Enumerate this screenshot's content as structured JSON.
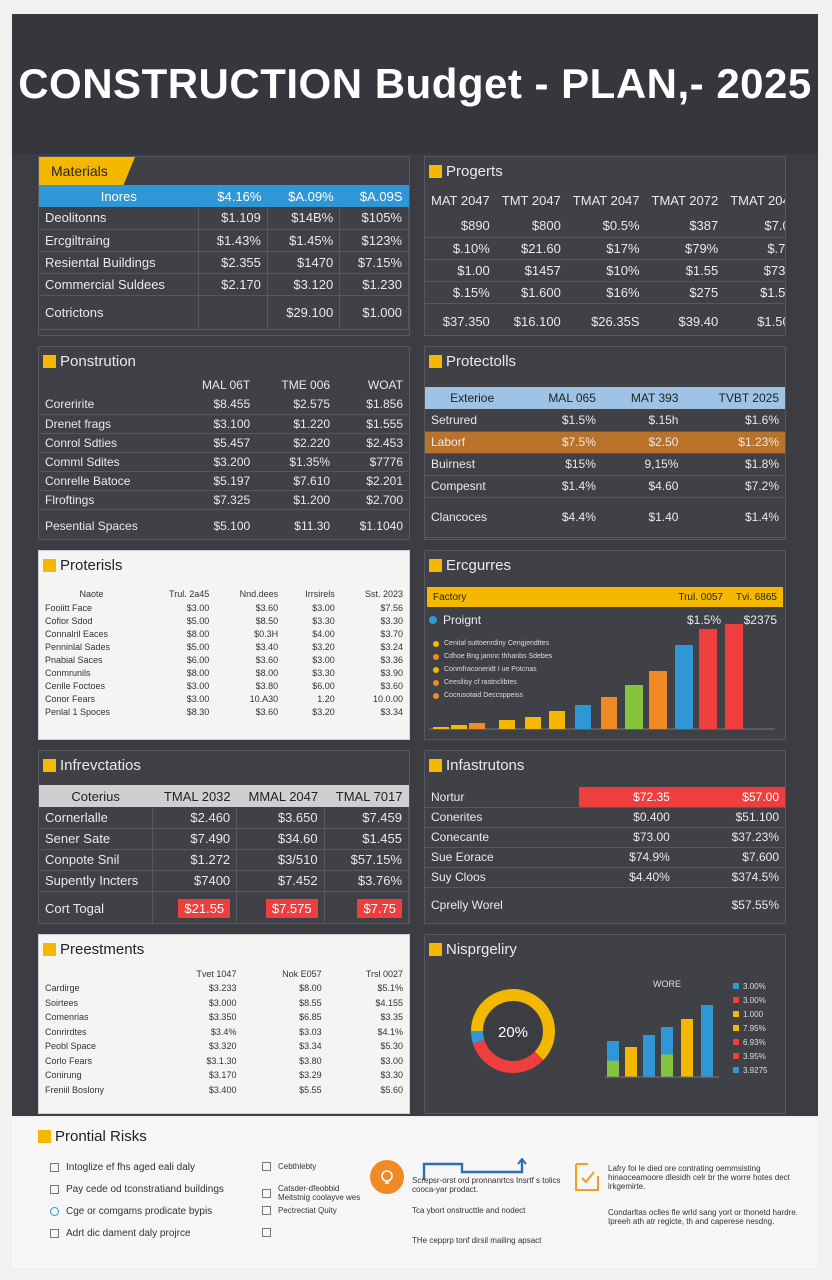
{
  "title": "CONSTRUCTION Budget - PLAN,- 2025",
  "materials": {
    "title": "Materials",
    "headers": [
      "Inores",
      "$4.16%",
      "$A.09%",
      "$A.09S"
    ],
    "rows": [
      [
        "Deolitonns",
        "$1.109",
        "$14B%",
        "$105%"
      ],
      [
        "Ercgiltraing",
        "$1.43%",
        "$1.45%",
        "$123%"
      ],
      [
        "Resiental Buildings",
        "$2.355",
        "$1470",
        "$7.15%"
      ],
      [
        "Commercial Suldees",
        "$2.170",
        "$3.120",
        "$1.230"
      ]
    ],
    "total": [
      "Cotrictons",
      "",
      "$29.100",
      "$1.000"
    ]
  },
  "progerts": {
    "title": "Progerts",
    "headers": [
      "MAT 2047",
      "TMT 2047",
      "TMAT 2047",
      "TMAT 2072",
      "TMAT 2047"
    ],
    "rows": [
      [
        "$890",
        "$800",
        "$0.5%",
        "$387",
        "$7.00"
      ],
      [
        "$.10%",
        "$21.60",
        "$17%",
        "$79%",
        "$.7%"
      ],
      [
        "$1.00",
        "$1457",
        "$10%",
        "$1.55",
        "$73%"
      ],
      [
        "$.15%",
        "$1.600",
        "$16%",
        "$275",
        "$1.5%"
      ]
    ],
    "total": [
      "$37.350",
      "$16.100",
      "$26.35S",
      "$39.40",
      "$1.500"
    ]
  },
  "ponstrution": {
    "title": "Ponstrution",
    "headers": [
      "",
      "MAL 06T",
      "TME 006",
      "WOAT"
    ],
    "rows": [
      [
        "Coreririte",
        "$8.455",
        "$2.575",
        "$1.856"
      ],
      [
        "Drenet frags",
        "$3.100",
        "$1.220",
        "$1.555"
      ],
      [
        "Conrol Sdties",
        "$5.457",
        "$2.220",
        "$2.453"
      ],
      [
        "Comml Sdites",
        "$3.200",
        "$1.35%",
        "$7776"
      ],
      [
        "Conrelle Batoce",
        "$5.197",
        "$7.610",
        "$2.201"
      ],
      [
        "Flroftings",
        "$7.325",
        "$1.200",
        "$2.700"
      ]
    ],
    "total": [
      "Pesential Spaces",
      "$5.100",
      "$11.30",
      "$1.1040"
    ]
  },
  "protectolls": {
    "title": "Protectolls",
    "headers": [
      "Exterioe",
      "MAL 065",
      "MAT 393",
      "TVBT 2025"
    ],
    "rows": [
      [
        "Setrured",
        "$1.5%",
        "$.15h",
        "$1.6%"
      ],
      [
        "Laborf",
        "$7.5%",
        "$2.50",
        "$1.23%"
      ],
      [
        "Buirnest",
        "$15%",
        "9,15%",
        "$1.8%"
      ],
      [
        "Compesnt",
        "$1.4%",
        "$4.60",
        "$7.2%"
      ]
    ],
    "total": [
      "Clancoces",
      "$4.4%",
      "$1.40",
      "$1.4%"
    ]
  },
  "proterisls": {
    "title": "Proterisls",
    "headers": [
      "Naote",
      "Trul. 2a45",
      "Nnd.dees",
      "Irrsirels",
      "Sst. 2023"
    ],
    "rows": [
      [
        "Fooiitt Face",
        "$3.00",
        "$3.60",
        "$3.00",
        "$7.56"
      ],
      [
        "Cofior Sdod",
        "$5.00",
        "$8.50",
        "$3.30",
        "$3.30"
      ],
      [
        "Connalril Eaces",
        "$8.00",
        "$0.3H",
        "$4.00",
        "$3.70"
      ],
      [
        "Penninlal Sades",
        "$5.00",
        "$3.40",
        "$3.20",
        "$3.24"
      ],
      [
        "Pnabial Saces",
        "$6.00",
        "$3.60",
        "$3.00",
        "$3.36"
      ],
      [
        "Conmrunils",
        "$8.00",
        "$8.00",
        "$3.30",
        "$3.90"
      ],
      [
        "Cenlle Foctoes",
        "$3.00",
        "$3.80",
        "$6.00",
        "$3.60"
      ],
      [
        "Conor Fears",
        "$3.00",
        "10.A30",
        "1.20",
        "10.0.00"
      ],
      [
        "Penlal 1 Spoces",
        "$8.30",
        "$3.60",
        "$3.20",
        "$3.34"
      ]
    ]
  },
  "ercgurres": {
    "title": "Ercgurres",
    "bar_header": [
      "Factory",
      "Trul. 0057",
      "Tvi. 6865"
    ],
    "row": [
      "Proignt",
      "$1.5%",
      "$2375"
    ],
    "legend": [
      "Cenital suttoenrdiny Cengjendttes",
      "Cdhoe Bng jamnc thhanbs Sdebes",
      "Conmfraconeridt I ue Potcnas",
      "Ceesilisy cf rastnclibtes",
      "Cocrusotaid Deccsppeiss"
    ],
    "colors": {
      "bar_a": "#f5b800",
      "bar_b": "#2f97d6",
      "bar_c": "#f08a24",
      "bar_d": "#86c440",
      "bar_e": "#ee3e3e"
    }
  },
  "infrevctatios": {
    "title": "Infrevctatios",
    "headers": [
      "Coterius",
      "TMAL 2032",
      "MMAL 2047",
      "TMAL 7017"
    ],
    "rows": [
      [
        "Cornerlalle",
        "$2.460",
        "$3.650",
        "$7.459"
      ],
      [
        "Sener Sate",
        "$7.490",
        "$34.60",
        "$1.455"
      ],
      [
        "Conpote Snil",
        "$1.272",
        "$3/510",
        "$57.15%"
      ],
      [
        "Supently Incters",
        "$7400",
        "$7.452",
        "$3.76%"
      ]
    ],
    "total": [
      "Cort Togal",
      "$21.55",
      "$7.575",
      "$7.75"
    ]
  },
  "infastrutons": {
    "title": "Infastrutons",
    "rows": [
      [
        "Nortur",
        "$72.35",
        "$57.00"
      ],
      [
        "Conerites",
        "$0.400",
        "$51.100"
      ],
      [
        "Conecante",
        "$73.00",
        "$37.23%"
      ],
      [
        "Sue Eorace",
        "$74.9%",
        "$7.600"
      ],
      [
        "Suy Cloos",
        "$4.40%",
        "$374.5%"
      ]
    ],
    "total": [
      "Cprelly Worel",
      "",
      "$57.55%"
    ]
  },
  "preestments": {
    "title": "Preestments",
    "headers": [
      "",
      "Tvet 1047",
      "Nok E057",
      "Trsl 0027"
    ],
    "rows": [
      [
        "Cardirge",
        "$3.233",
        "$8.00",
        "$5.1%"
      ],
      [
        "Soirtees",
        "$3.000",
        "$8.55",
        "$4.155"
      ],
      [
        "Comenrias",
        "$3.350",
        "$6.85",
        "$3.35"
      ],
      [
        "Conrirdtes",
        "$3.4%",
        "$3.03",
        "$4.1%"
      ],
      [
        "Peobl Space",
        "$3.320",
        "$3.34",
        "$5.30"
      ],
      [
        "Corlo Fears",
        "$3.1.30",
        "$3.80",
        "$3.00"
      ],
      [
        "Conirung",
        "$3.170",
        "$3.29",
        "$3.30"
      ],
      [
        "Freniil Boslony",
        "$3.400",
        "$5.55",
        "$5.60"
      ]
    ]
  },
  "nisprgeliry": {
    "title": "Nisprgeliry",
    "donut_label": "20%",
    "chart_label": "WORE",
    "legend": [
      "3.00%",
      "3.00%",
      "1.000",
      "7.95%",
      "6.93%",
      "3.95%",
      "3.9275"
    ],
    "legend_colors": [
      "#2f97d6",
      "#ee3e3e",
      "#f5b800",
      "#f5b800",
      "#ee3e3e",
      "#ee3e3e",
      "#2f97d6"
    ],
    "colors": {
      "donut_main": "#f5b800",
      "donut_red": "#ee3e3e",
      "donut_blue": "#2f97d6"
    }
  },
  "risks": {
    "title": "Prontial Risks",
    "col1": [
      "Intoglize ef fhs aged eali daly",
      "Pay cede od tconstratiand buildings",
      "Cge or comgams prodicate bypis",
      "Adrt dic dament daly projrce"
    ],
    "col2": [
      "Cebthlebty",
      "Catsder-dfeobbid Meitstnig coolayve wes",
      "Pectrectiat Quity",
      ""
    ],
    "col3": [
      "Screpsr-orst ord pronnanrtcs Insrtf s tolics cooca-yar prodact.",
      "Tca ybort onstructtle and nodect",
      "THe cepprp tonf dirsil mailing apsact"
    ],
    "col4": [
      "Lafry foi le died ore contrating oemmsisting hinaoceamoore dlesidh celr br the worre hotes dect lrkgemirte.",
      "Condarltas oclles fle wrld sang yort or thonetd hardre. Ipreeh ath atr regicte, th and caperese nesdng."
    ]
  }
}
